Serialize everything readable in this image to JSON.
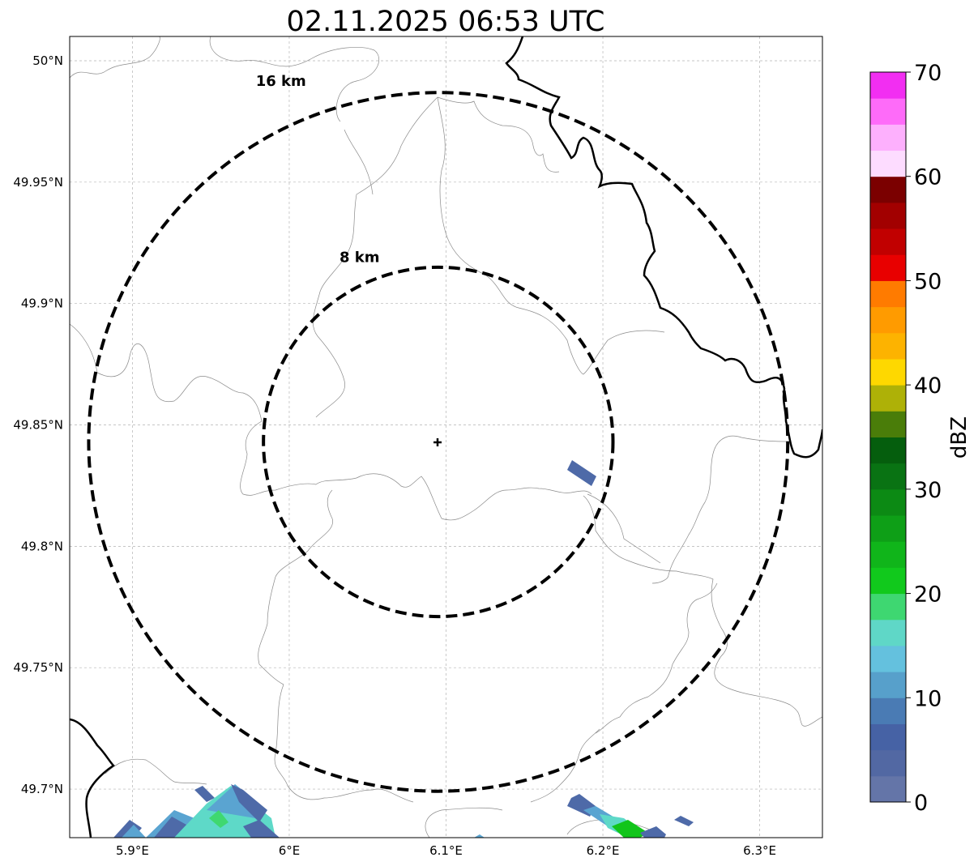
{
  "title": "02.11.2025 06:53 UTC",
  "map": {
    "extent": {
      "lon_min": 5.86,
      "lon_max": 6.34,
      "lat_min": 49.68,
      "lat_max": 50.01
    },
    "center": {
      "lon": 6.095,
      "lat": 49.843
    },
    "x_ticks": [
      {
        "value": 5.9,
        "label": "5.9°E"
      },
      {
        "value": 6.0,
        "label": "6°E"
      },
      {
        "value": 6.1,
        "label": "6.1°E"
      },
      {
        "value": 6.2,
        "label": "6.2°E"
      },
      {
        "value": 6.3,
        "label": "6.3°E"
      }
    ],
    "y_ticks": [
      {
        "value": 50.0,
        "label": "50°N"
      },
      {
        "value": 49.95,
        "label": "49.95°N"
      },
      {
        "value": 49.9,
        "label": "49.9°N"
      },
      {
        "value": 49.85,
        "label": "49.85°N"
      },
      {
        "value": 49.8,
        "label": "49.8°N"
      },
      {
        "value": 49.75,
        "label": "49.75°N"
      },
      {
        "value": 49.7,
        "label": "49.7°N"
      }
    ],
    "range_rings": [
      {
        "radius_km": 8,
        "label": "8 km"
      },
      {
        "radius_km": 16,
        "label": "16 km"
      }
    ]
  },
  "colorbar": {
    "label": "dBZ",
    "min": 0,
    "max": 70,
    "step": 2.5,
    "tick_labels": [
      "0",
      "10",
      "20",
      "30",
      "40",
      "50",
      "60",
      "70"
    ],
    "colors": [
      "#6475a8",
      "#5268a3",
      "#4662a5",
      "#4a7bb4",
      "#57a0cb",
      "#64c1de",
      "#5fd7c7",
      "#3ed771",
      "#11c91c",
      "#10b51a",
      "#0e9f17",
      "#0c8a14",
      "#097313",
      "#055e0d",
      "#4a7d09",
      "#aeb107",
      "#fed800",
      "#fdb300",
      "#ff9b00",
      "#ff7b00",
      "#e80000",
      "#c10000",
      "#a20000",
      "#7b0000",
      "#fddcff",
      "#fdb0fd",
      "#fe6bf9",
      "#f22ef2"
    ]
  },
  "echo_colors": {
    "weak": "#4e6aa8",
    "light": "#5aa4d1",
    "cyan": "#5ed9c8",
    "green": "#3fd870",
    "bright_green": "#12c51b"
  }
}
